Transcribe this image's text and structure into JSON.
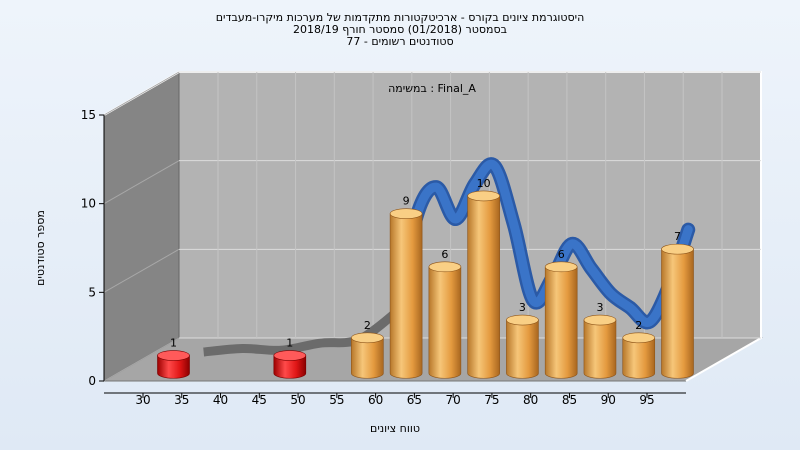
{
  "chart_data": {
    "type": "bar",
    "title_lines": [
      "היסטוגרמת ציונים בקורס - ארכיטקטורות מתקדמות של מערכות מיקרו-מעבדים",
      "בסמסטר  (01/2018)  סמסטר חורף 2018/19",
      "סטודנטים רשומים - 77"
    ],
    "annotation": "במשימה : Final_A",
    "xlabel": "טווח ציונים",
    "ylabel": "מספר סטודנטים",
    "ylim": [
      0,
      15
    ],
    "yticks": [
      0,
      5,
      10,
      15
    ],
    "xticks": [
      30,
      35,
      40,
      45,
      50,
      55,
      60,
      65,
      70,
      75,
      80,
      85,
      90,
      95
    ],
    "bars": [
      {
        "x": 30,
        "value": 1,
        "color": "red"
      },
      {
        "x": 45,
        "value": 1,
        "color": "red"
      },
      {
        "x": 55,
        "value": 2,
        "color": "orange"
      },
      {
        "x": 60,
        "value": 9,
        "color": "orange"
      },
      {
        "x": 65,
        "value": 6,
        "color": "orange"
      },
      {
        "x": 70,
        "value": 10,
        "color": "orange"
      },
      {
        "x": 75,
        "value": 3,
        "color": "orange"
      },
      {
        "x": 80,
        "value": 6,
        "color": "orange"
      },
      {
        "x": 85,
        "value": 3,
        "color": "orange"
      },
      {
        "x": 90,
        "value": 2,
        "color": "orange"
      },
      {
        "x": 95,
        "value": 7,
        "color": "orange"
      }
    ],
    "trend_series": [
      {
        "x": 32.5,
        "value": 0.3
      },
      {
        "x": 37.5,
        "value": 0.5
      },
      {
        "x": 42.5,
        "value": 0.4
      },
      {
        "x": 47.5,
        "value": 0.8
      },
      {
        "x": 52.5,
        "value": 1.0
      },
      {
        "x": 57.5,
        "value": 2.6
      },
      {
        "x": 60.0,
        "value": 8.0
      },
      {
        "x": 62.5,
        "value": 9.6
      },
      {
        "x": 65.0,
        "value": 7.8
      },
      {
        "x": 67.5,
        "value": 9.8
      },
      {
        "x": 70.0,
        "value": 10.8
      },
      {
        "x": 72.5,
        "value": 7.5
      },
      {
        "x": 75.0,
        "value": 3.2
      },
      {
        "x": 77.5,
        "value": 4.5
      },
      {
        "x": 80.0,
        "value": 6.4
      },
      {
        "x": 82.5,
        "value": 5.0
      },
      {
        "x": 85.0,
        "value": 3.6
      },
      {
        "x": 87.5,
        "value": 2.8
      },
      {
        "x": 90.0,
        "value": 2.0
      },
      {
        "x": 92.5,
        "value": 4.0
      },
      {
        "x": 95.0,
        "value": 7.2
      }
    ],
    "colors": {
      "back_wall": "#b3b3b3",
      "side_wall": "#858585",
      "floor": "#a6a6a6",
      "trend": "#3a74c8",
      "trend_shade": "#2b5aa6",
      "trend_low": "#6b6b6b",
      "bar_orange": "#e6a24c",
      "bar_red": "#e01616"
    },
    "grid": true,
    "legend": "none"
  }
}
